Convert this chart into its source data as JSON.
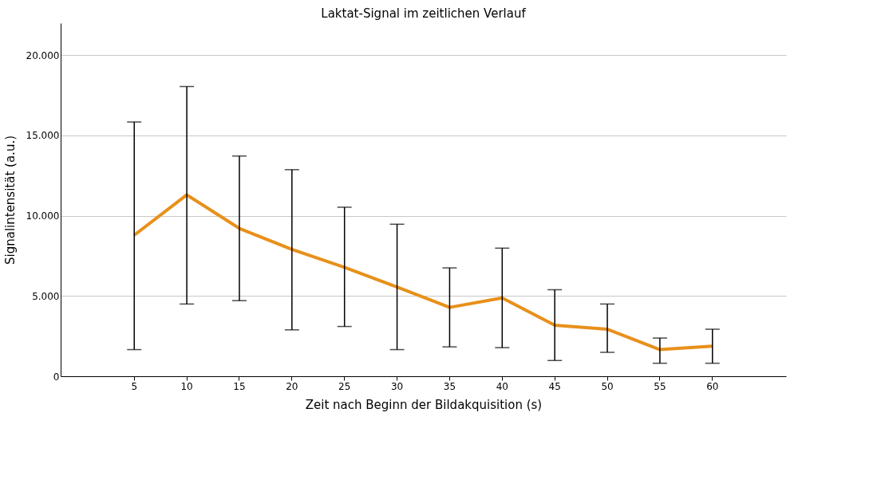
{
  "chart_data": {
    "type": "line",
    "title": "Laktat-Signal im zeitlichen Verlauf",
    "xlabel": "Zeit nach Beginn der Bildakquisition (s)",
    "ylabel": "Signalintensität (a.u.)",
    "categories": [
      "5",
      "10",
      "15",
      "20",
      "25",
      "30",
      "35",
      "40",
      "45",
      "50",
      "55",
      "60"
    ],
    "series": [
      {
        "color": "#e8901a",
        "values": [
          8790,
          11300,
          9210,
          7900,
          6790,
          5560,
          4290,
          4880,
          3180,
          2930,
          1660,
          1870
        ],
        "errors": [
          [
            1660,
            15840
          ],
          [
            4500,
            18050
          ],
          [
            4710,
            13720
          ],
          [
            2890,
            12870
          ],
          [
            3100,
            10530
          ],
          [
            1660,
            9470
          ],
          [
            1830,
            6750
          ],
          [
            1780,
            7980
          ],
          [
            980,
            5390
          ],
          [
            1490,
            4500
          ],
          [
            810,
            2380
          ],
          [
            810,
            2930
          ]
        ]
      }
    ],
    "ylim": [
      0,
      22000
    ],
    "yticks": [
      0,
      {
        "value": 5000,
        "label": "5.000"
      },
      {
        "value": 10000,
        "label": "10.000"
      },
      {
        "value": 15000,
        "label": "15.000"
      },
      {
        "value": 20000,
        "label": "20.000"
      }
    ],
    "grid": "y",
    "marker": "none",
    "line_style": "solid"
  }
}
